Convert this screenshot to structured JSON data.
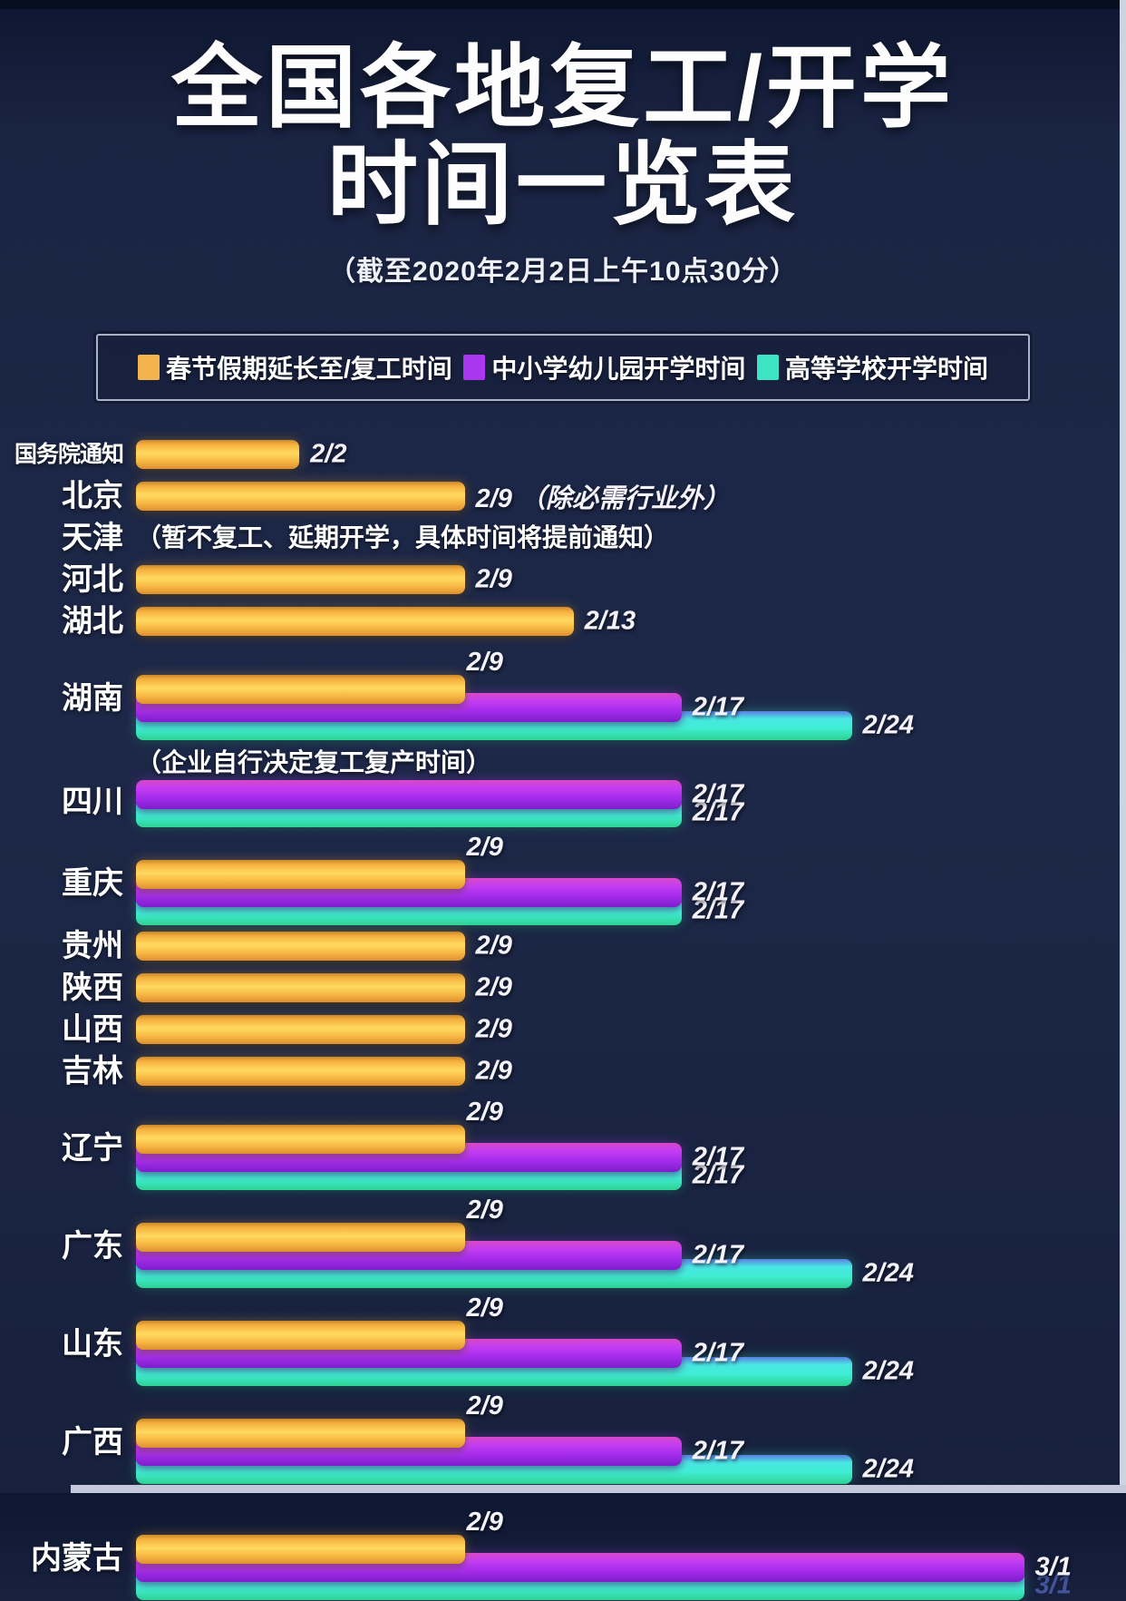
{
  "title": {
    "line1": "全国各地复工/开学",
    "line2": "时间一览表",
    "subtitle": "（截至2020年2月2日上午10点30分）"
  },
  "legend": [
    {
      "series": "work",
      "label": "春节假期延长至/复工时间",
      "color": "#f2b24c"
    },
    {
      "series": "school",
      "label": "中小学幼儿园开学时间",
      "color": "#ab36ef"
    },
    {
      "series": "college",
      "label": "高等学校开学时间",
      "color": "#3de4c3"
    }
  ],
  "colors": {
    "work_bar": "#f8bc45",
    "school_bar": "#b434f0",
    "college_bar": "#3fe9d2",
    "background": "#1c2747",
    "edge_strip": "#c9d0df"
  },
  "chart_data": {
    "type": "bar",
    "orientation": "horizontal",
    "value_unit": "date (month/day), bar length encodes date from 2/2 to 3/1",
    "axis_visible": false,
    "legend_position": "top",
    "series": [
      "春节假期延长至/复工时间",
      "中小学幼儿园开学时间",
      "高等学校开学时间"
    ],
    "rows": [
      {
        "name": "国务院通知",
        "small": true,
        "bars": [
          {
            "series": "work",
            "date": "2/2",
            "pct": 16.5
          }
        ]
      },
      {
        "name": "北京",
        "bars": [
          {
            "series": "work",
            "date": "2/9",
            "suffix": "（除必需行业外）",
            "pct": 33.2
          }
        ]
      },
      {
        "name": "天津",
        "note": "（暂不复工、延期开学，具体时间将提前通知）",
        "bars": []
      },
      {
        "name": "河北",
        "bars": [
          {
            "series": "work",
            "date": "2/9",
            "pct": 33.2
          }
        ]
      },
      {
        "name": "湖北",
        "bars": [
          {
            "series": "work",
            "date": "2/13",
            "pct": 44.2
          }
        ]
      },
      {
        "name": "湖南",
        "bars": [
          {
            "series": "work",
            "date": "2/9",
            "pct": 33.2,
            "above": true
          },
          {
            "series": "school",
            "date": "2/17",
            "pct": 55.1
          },
          {
            "series": "college",
            "date": "2/24",
            "pct": 72.3
          }
        ]
      },
      {
        "name": "四川",
        "note": "（企业自行决定复工复产时间）",
        "bars": [
          {
            "series": "school",
            "date": "2/17",
            "pct": 55.1
          },
          {
            "series": "college",
            "date": "2/17",
            "pct": 55.1
          }
        ]
      },
      {
        "name": "重庆",
        "bars": [
          {
            "series": "work",
            "date": "2/9",
            "pct": 33.2,
            "above": true
          },
          {
            "series": "school",
            "date": "2/17",
            "pct": 55.1
          },
          {
            "series": "college",
            "date": "2/17",
            "pct": 55.1
          }
        ]
      },
      {
        "name": "贵州",
        "bars": [
          {
            "series": "work",
            "date": "2/9",
            "pct": 33.2
          }
        ]
      },
      {
        "name": "陕西",
        "bars": [
          {
            "series": "work",
            "date": "2/9",
            "pct": 33.2
          }
        ]
      },
      {
        "name": "山西",
        "bars": [
          {
            "series": "work",
            "date": "2/9",
            "pct": 33.2
          }
        ]
      },
      {
        "name": "吉林",
        "bars": [
          {
            "series": "work",
            "date": "2/9",
            "pct": 33.2
          }
        ]
      },
      {
        "name": "辽宁",
        "bars": [
          {
            "series": "work",
            "date": "2/9",
            "pct": 33.2,
            "above": true
          },
          {
            "series": "school",
            "date": "2/17",
            "pct": 55.1
          },
          {
            "series": "college",
            "date": "2/17",
            "pct": 55.1
          }
        ]
      },
      {
        "name": "广东",
        "bars": [
          {
            "series": "work",
            "date": "2/9",
            "pct": 33.2,
            "above": true
          },
          {
            "series": "school",
            "date": "2/17",
            "pct": 55.1
          },
          {
            "series": "college",
            "date": "2/24",
            "pct": 72.3
          }
        ]
      },
      {
        "name": "山东",
        "bars": [
          {
            "series": "work",
            "date": "2/9",
            "pct": 33.2,
            "above": true
          },
          {
            "series": "school",
            "date": "2/17",
            "pct": 55.1
          },
          {
            "series": "college",
            "date": "2/24",
            "pct": 72.3
          }
        ]
      },
      {
        "name": "广西",
        "bars": [
          {
            "series": "work",
            "date": "2/9",
            "pct": 33.2,
            "above": true
          },
          {
            "series": "school",
            "date": "2/17",
            "pct": 55.1
          },
          {
            "series": "college",
            "date": "2/24",
            "pct": 72.3
          }
        ]
      },
      {
        "name": "内蒙古",
        "extra_gap": true,
        "bars": [
          {
            "series": "work",
            "date": "2/9",
            "pct": 33.2,
            "above": true
          },
          {
            "series": "school",
            "date": "3/1",
            "pct": 89.7
          },
          {
            "series": "college",
            "date": "3/1",
            "pct": 89.7,
            "muted": true
          }
        ]
      }
    ]
  }
}
